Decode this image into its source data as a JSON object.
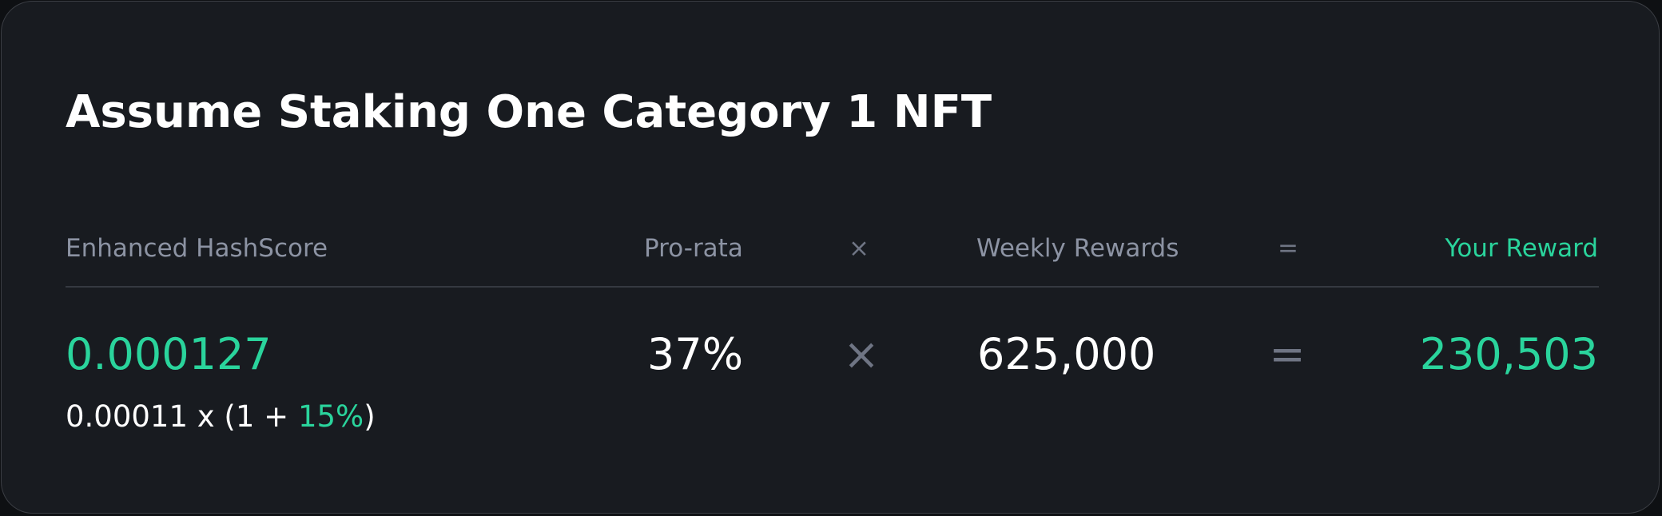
{
  "title": "Assume Staking One Category 1 NFT",
  "header": {
    "hashscore": "Enhanced HashScore",
    "prorata": "Pro-rata",
    "times": "×",
    "weekly": "Weekly Rewards",
    "equals": "=",
    "reward": "Your Reward"
  },
  "values": {
    "hashscore": "0.000127",
    "prorata": "37%",
    "times": "×",
    "weekly": "625,000",
    "equals": "=",
    "reward": "230,503"
  },
  "formula": {
    "base": "0.00011 x (1 + ",
    "bonus": "15%",
    "close": ")"
  }
}
